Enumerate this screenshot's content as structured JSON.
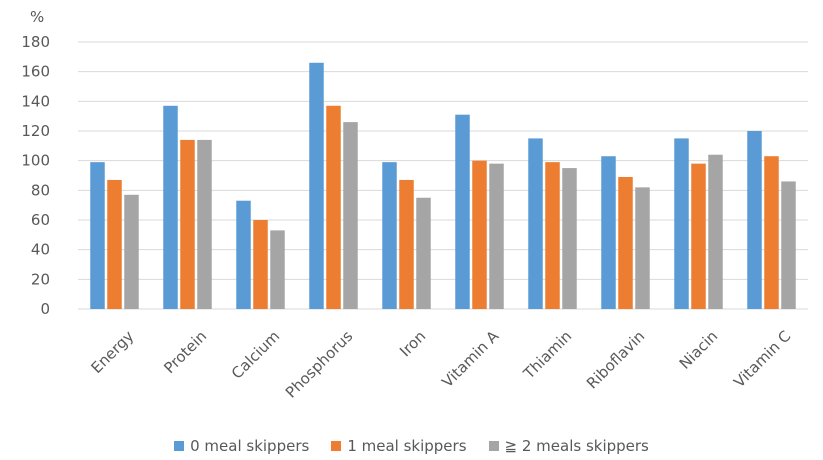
{
  "chart_data": {
    "type": "bar",
    "unit_label": "%",
    "categories": [
      "Energy",
      "Protein",
      "Calcium",
      "Phosphorus",
      "Iron",
      "Vitamin A",
      "Thiamin",
      "Riboflavin",
      "Niacin",
      "Vitamin C"
    ],
    "series": [
      {
        "name": "0 meal skippers",
        "color": "#5B9BD5",
        "values": [
          99,
          137,
          73,
          166,
          99,
          131,
          115,
          103,
          115,
          120
        ]
      },
      {
        "name": "1 meal skippers",
        "color": "#ED7D31",
        "values": [
          87,
          114,
          60,
          137,
          87,
          100,
          99,
          89,
          98,
          103
        ]
      },
      {
        "name": "≧ 2 meals skippers",
        "color": "#A5A5A5",
        "values": [
          77,
          114,
          53,
          126,
          75,
          98,
          95,
          82,
          104,
          86
        ]
      }
    ],
    "ylim": [
      0,
      180
    ],
    "yticks": [
      0,
      20,
      40,
      60,
      80,
      100,
      120,
      140,
      160,
      180
    ],
    "grid": true,
    "legend_position": "bottom",
    "xlabel": "",
    "ylabel": ""
  }
}
